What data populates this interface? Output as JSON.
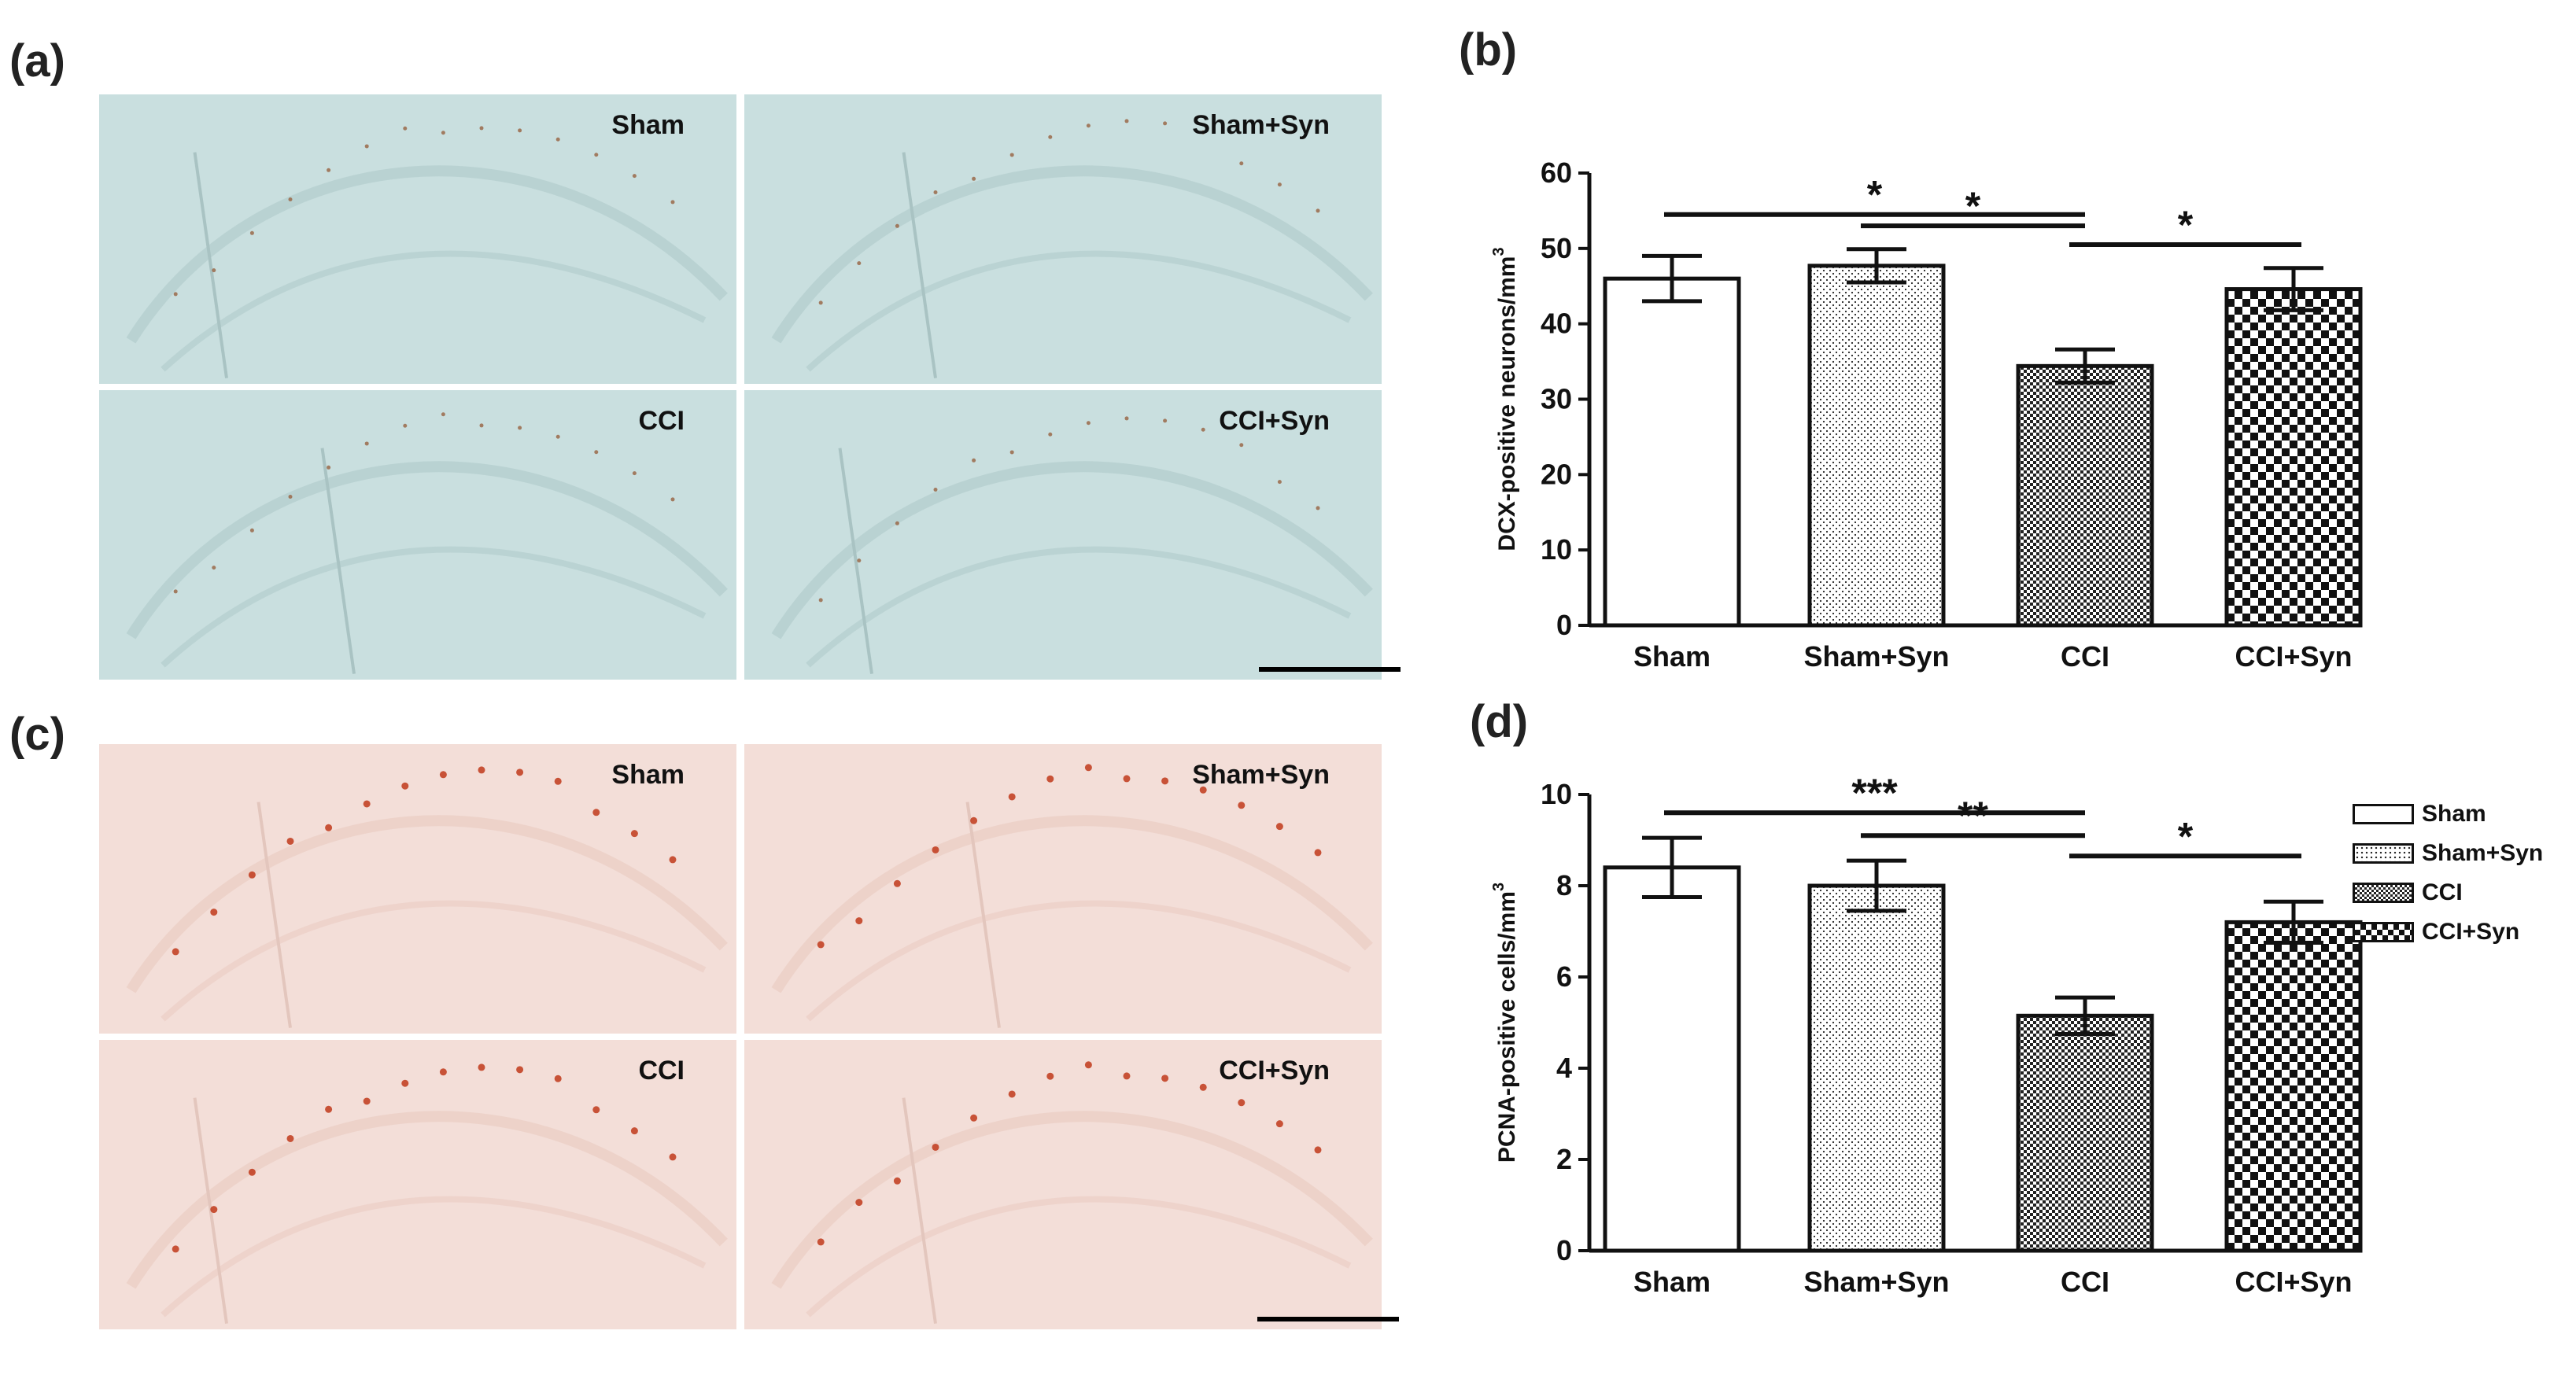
{
  "panels": {
    "a": "(a)",
    "b": "(b)",
    "c": "(c)",
    "d": "(d)"
  },
  "micrographs": {
    "a": {
      "stain": "DCX",
      "tiles": [
        {
          "label": "Sham"
        },
        {
          "label": "Sham+Syn"
        },
        {
          "label": "CCI"
        },
        {
          "label": "CCI+Syn"
        }
      ],
      "background": "#c9dfdf",
      "marker_color": "#000000"
    },
    "c": {
      "stain": "PCNA",
      "tiles": [
        {
          "label": "Sham"
        },
        {
          "label": "Sham+Syn"
        },
        {
          "label": "CCI"
        },
        {
          "label": "CCI+Syn"
        }
      ],
      "background": "#f3ded8",
      "marker_color": "#c0391b"
    }
  },
  "legend": {
    "items": [
      {
        "label": "Sham",
        "pattern": "white"
      },
      {
        "label": "Sham+Syn",
        "pattern": "dots"
      },
      {
        "label": "CCI",
        "pattern": "fine-check"
      },
      {
        "label": "CCI+Syn",
        "pattern": "check"
      }
    ]
  },
  "chart_data": [
    {
      "type": "bar",
      "panel": "b",
      "categories": [
        "Sham",
        "Sham+Syn",
        "CCI",
        "CCI+Syn"
      ],
      "values": [
        46,
        47.7,
        34.4,
        44.6
      ],
      "errors": [
        3,
        2.2,
        2.2,
        2.8
      ],
      "patterns": [
        "white",
        "dots",
        "fine-check",
        "check"
      ],
      "ylabel": "DCX-positive neurons/mm",
      "ylabel_sup": "3",
      "ylim": [
        0,
        60
      ],
      "yticks": [
        0,
        10,
        20,
        30,
        40,
        50,
        60
      ],
      "significance": [
        {
          "from": 0,
          "to": 2,
          "y": 54.5,
          "label": "*"
        },
        {
          "from": 1,
          "to": 2,
          "y": 53.0,
          "label": "*"
        },
        {
          "from": 2,
          "to": 3,
          "y": 50.5,
          "label": "*"
        }
      ]
    },
    {
      "type": "bar",
      "panel": "d",
      "categories": [
        "Sham",
        "Sham+Syn",
        "CCI",
        "CCI+Syn"
      ],
      "values": [
        8.4,
        8.0,
        5.15,
        7.2
      ],
      "errors": [
        0.65,
        0.55,
        0.4,
        0.45
      ],
      "patterns": [
        "white",
        "dots",
        "fine-check",
        "check"
      ],
      "ylabel": "PCNA-positive cells/mm",
      "ylabel_sup": "3",
      "ylim": [
        0,
        10
      ],
      "yticks": [
        0,
        2,
        4,
        6,
        8,
        10
      ],
      "significance": [
        {
          "from": 0,
          "to": 2,
          "y": 9.6,
          "label": "***"
        },
        {
          "from": 1,
          "to": 2,
          "y": 9.1,
          "label": "**"
        },
        {
          "from": 2,
          "to": 3,
          "y": 8.65,
          "label": "*"
        }
      ]
    }
  ]
}
